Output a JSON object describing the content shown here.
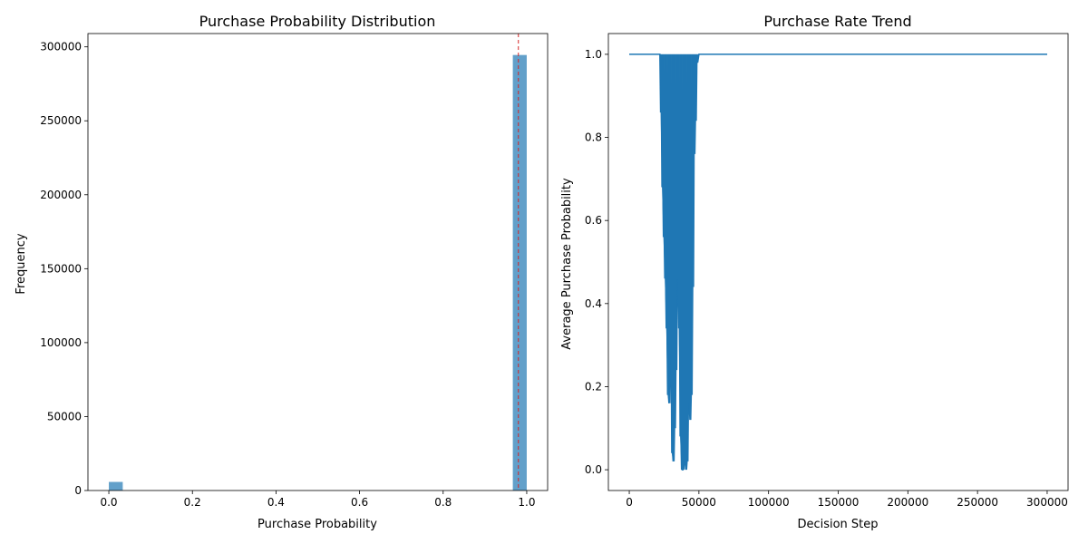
{
  "chart_data": [
    {
      "type": "bar",
      "title": "Purchase Probability Distribution",
      "xlabel": "Purchase Probability",
      "ylabel": "Frequency",
      "xlim": [
        -0.05,
        1.05
      ],
      "ylim": [
        0,
        309000
      ],
      "xticks": [
        0.0,
        0.2,
        0.4,
        0.6,
        0.8,
        1.0
      ],
      "xtick_labels": [
        "0.0",
        "0.2",
        "0.4",
        "0.6",
        "0.8",
        "1.0"
      ],
      "yticks": [
        0,
        50000,
        100000,
        150000,
        200000,
        250000,
        300000
      ],
      "ytick_labels": [
        "0",
        "50000",
        "100000",
        "150000",
        "200000",
        "250000",
        "300000"
      ],
      "bins": [
        {
          "x0": 0.0,
          "x1": 0.0333,
          "count": 5800
        },
        {
          "x0": 0.9667,
          "x1": 1.0,
          "count": 294500
        }
      ],
      "bar_color": "#1f77b4",
      "bar_alpha": 0.7,
      "reference_line": {
        "x": 0.98,
        "color": "#d62728",
        "style": "dashed"
      }
    },
    {
      "type": "line",
      "title": "Purchase Rate Trend",
      "xlabel": "Decision Step",
      "ylabel": "Average Purchase Probability",
      "xlim": [
        -15000,
        315000
      ],
      "ylim": [
        -0.05,
        1.05
      ],
      "xticks": [
        0,
        50000,
        100000,
        150000,
        200000,
        250000,
        300000
      ],
      "xtick_labels": [
        "0",
        "50000",
        "100000",
        "150000",
        "200000",
        "250000",
        "300000"
      ],
      "yticks": [
        0.0,
        0.2,
        0.4,
        0.6,
        0.8,
        1.0
      ],
      "ytick_labels": [
        "0.0",
        "0.2",
        "0.4",
        "0.6",
        "0.8",
        "1.0"
      ],
      "line_color": "#1f77b4",
      "series": [
        {
          "x": [
            0,
            22000,
            22500,
            23500,
            24500,
            25500,
            26500,
            27500,
            28500,
            29500,
            30500,
            31500,
            32500,
            33500,
            34500,
            35500,
            36500,
            37500,
            38500,
            39500,
            40500,
            41500,
            42500,
            43500,
            44500,
            45500,
            46500,
            47500,
            48500,
            50000,
            300000
          ],
          "y": [
            1.0,
            1.0,
            0.86,
            0.68,
            0.56,
            0.46,
            0.34,
            0.18,
            0.16,
            0.28,
            0.04,
            0.02,
            0.1,
            0.24,
            0.46,
            0.34,
            0.08,
            0.0,
            0.0,
            0.02,
            0.0,
            0.02,
            0.16,
            0.12,
            0.18,
            0.44,
            0.76,
            0.84,
            0.98,
            1.0,
            1.0
          ]
        }
      ]
    }
  ]
}
